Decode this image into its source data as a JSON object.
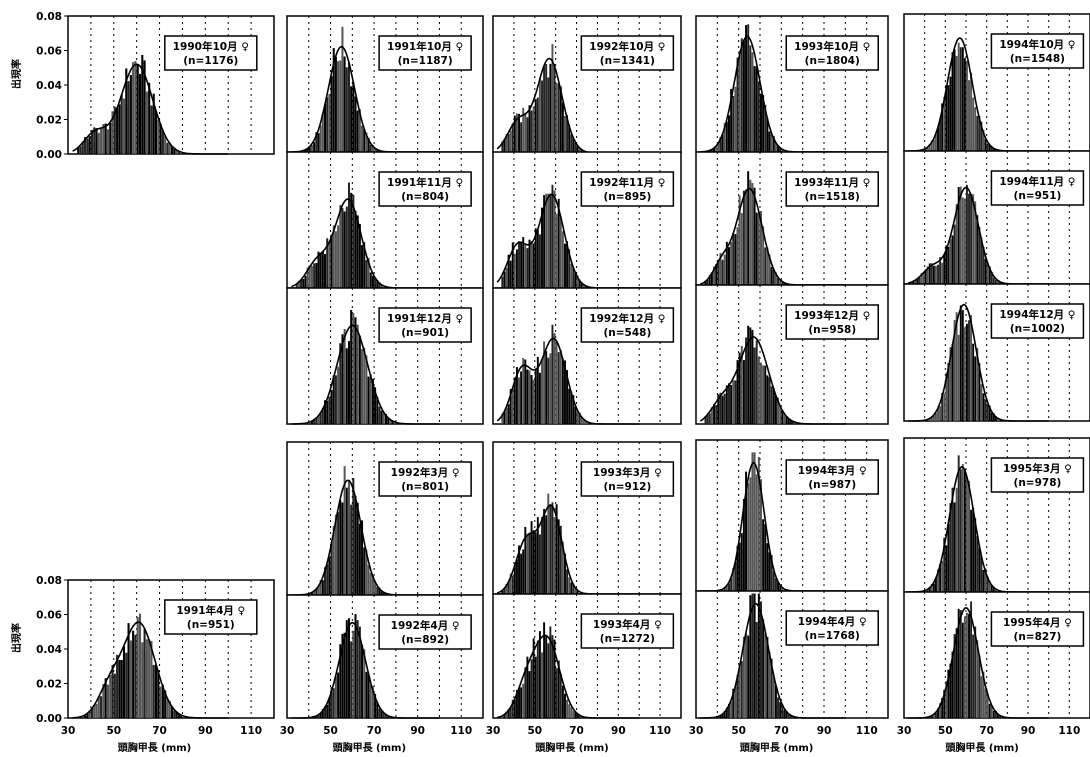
{
  "chart_data": {
    "type": "bar",
    "x_ticks": [
      30,
      50,
      70,
      90,
      110
    ],
    "y_ticks": [
      "0.00",
      "0.02",
      "0.04",
      "0.06",
      "0.08"
    ],
    "xlim": [
      30,
      120
    ],
    "ylim": [
      0,
      0.08
    ],
    "grid": "dotted-vertical",
    "ylabel": "出現率",
    "xlabel": "頭胸甲長 (mm)",
    "panels": [
      {
        "id": "1990-10",
        "label": "1990年10月 ♀",
        "n": "(n=1176)",
        "peaks": [
          {
            "mu": 60,
            "sd": 7,
            "w": 0.052
          },
          {
            "mu": 42,
            "sd": 5,
            "w": 0.012
          }
        ]
      },
      {
        "id": "1991-10",
        "label": "1991年10月 ♀",
        "n": "(n=1187)",
        "peaks": [
          {
            "mu": 55,
            "sd": 6,
            "w": 0.062
          }
        ]
      },
      {
        "id": "1992-10",
        "label": "1992年10月 ♀",
        "n": "(n=1341)",
        "peaks": [
          {
            "mu": 57,
            "sd": 6,
            "w": 0.055
          },
          {
            "mu": 42,
            "sd": 5,
            "w": 0.018
          }
        ]
      },
      {
        "id": "1993-10",
        "label": "1993年10月 ♀",
        "n": "(n=1804)",
        "peaks": [
          {
            "mu": 54,
            "sd": 6,
            "w": 0.068
          }
        ]
      },
      {
        "id": "1994-10",
        "label": "1994年10月 ♀",
        "n": "(n=1548)",
        "peaks": [
          {
            "mu": 57,
            "sd": 6,
            "w": 0.066
          }
        ]
      },
      {
        "id": "1991-11",
        "label": "1991年11月 ♀",
        "n": "(n=804)",
        "peaks": [
          {
            "mu": 58,
            "sd": 6,
            "w": 0.052
          },
          {
            "mu": 44,
            "sd": 5,
            "w": 0.015
          }
        ]
      },
      {
        "id": "1992-11",
        "label": "1992年11月 ♀",
        "n": "(n=895)",
        "peaks": [
          {
            "mu": 58,
            "sd": 6,
            "w": 0.055
          },
          {
            "mu": 42,
            "sd": 5,
            "w": 0.025
          }
        ]
      },
      {
        "id": "1993-11",
        "label": "1993年11月 ♀",
        "n": "(n=1518)",
        "peaks": [
          {
            "mu": 55,
            "sd": 6,
            "w": 0.058
          },
          {
            "mu": 42,
            "sd": 4,
            "w": 0.012
          }
        ]
      },
      {
        "id": "1994-11",
        "label": "1994年11月 ♀",
        "n": "(n=951)",
        "peaks": [
          {
            "mu": 60,
            "sd": 6,
            "w": 0.058
          },
          {
            "mu": 44,
            "sd": 5,
            "w": 0.01
          }
        ]
      },
      {
        "id": "1991-12",
        "label": "1991年12月 ♀",
        "n": "(n=901)",
        "peaks": [
          {
            "mu": 60,
            "sd": 7,
            "w": 0.058
          }
        ]
      },
      {
        "id": "1992-12",
        "label": "1992年12月 ♀",
        "n": "(n=548)",
        "peaks": [
          {
            "mu": 59,
            "sd": 6,
            "w": 0.05
          },
          {
            "mu": 44,
            "sd": 5,
            "w": 0.032
          }
        ]
      },
      {
        "id": "1993-12",
        "label": "1993年12月 ♀",
        "n": "(n=958)",
        "peaks": [
          {
            "mu": 57,
            "sd": 7,
            "w": 0.05
          },
          {
            "mu": 42,
            "sd": 5,
            "w": 0.012
          }
        ]
      },
      {
        "id": "1994-12",
        "label": "1994年12月 ♀",
        "n": "(n=1002)",
        "peaks": [
          {
            "mu": 59,
            "sd": 6,
            "w": 0.068
          }
        ]
      },
      {
        "id": "1992-03",
        "label": "1992年3月 ♀",
        "n": "(n=801)",
        "peaks": [
          {
            "mu": 58,
            "sd": 6,
            "w": 0.06
          }
        ]
      },
      {
        "id": "1993-03",
        "label": "1993年3月 ♀",
        "n": "(n=912)",
        "peaks": [
          {
            "mu": 58,
            "sd": 5,
            "w": 0.045
          },
          {
            "mu": 46,
            "sd": 5,
            "w": 0.028
          }
        ]
      },
      {
        "id": "1994-03",
        "label": "1994年3月 ♀",
        "n": "(n=987)",
        "peaks": [
          {
            "mu": 57,
            "sd": 5,
            "w": 0.068
          }
        ]
      },
      {
        "id": "1995-03",
        "label": "1995年3月 ♀",
        "n": "(n=978)",
        "peaks": [
          {
            "mu": 58,
            "sd": 6,
            "w": 0.065
          }
        ]
      },
      {
        "id": "1991-04",
        "label": "1991年4月 ♀",
        "n": "(n=951)",
        "peaks": [
          {
            "mu": 61,
            "sd": 7,
            "w": 0.055
          },
          {
            "mu": 48,
            "sd": 5,
            "w": 0.015
          }
        ]
      },
      {
        "id": "1992-04",
        "label": "1992年4月 ♀",
        "n": "(n=892)",
        "peaks": [
          {
            "mu": 60,
            "sd": 6,
            "w": 0.062
          }
        ]
      },
      {
        "id": "1993-04",
        "label": "1993年4月 ♀",
        "n": "(n=1272)",
        "peaks": [
          {
            "mu": 56,
            "sd": 6,
            "w": 0.05
          },
          {
            "mu": 46,
            "sd": 5,
            "w": 0.02
          }
        ]
      },
      {
        "id": "1994-04",
        "label": "1994年4月 ♀",
        "n": "(n=1768)",
        "peaks": [
          {
            "mu": 58,
            "sd": 6,
            "w": 0.072
          }
        ]
      },
      {
        "id": "1995-04",
        "label": "1995年4月 ♀",
        "n": "(n=827)",
        "peaks": [
          {
            "mu": 60,
            "sd": 6,
            "w": 0.07
          }
        ]
      }
    ]
  }
}
